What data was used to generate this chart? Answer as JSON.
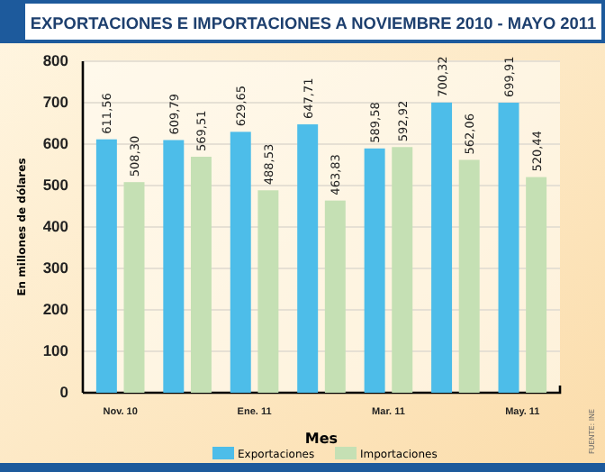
{
  "chart_data": {
    "type": "bar",
    "title": "EXPORTACIONES E IMPORTACIONES A NOVIEMBRE 2010 - MAYO 2011",
    "xlabel": "Mes",
    "ylabel": "En millones de dólares",
    "categories": [
      "Nov. 10",
      null,
      "Ene. 11",
      null,
      "Mar. 11",
      null,
      "May. 11"
    ],
    "series": [
      {
        "name": "Exportaciones",
        "color": "#4dbde9",
        "values": [
          611.56,
          609.79,
          629.65,
          647.71,
          589.58,
          700.32,
          699.91
        ],
        "value_labels": [
          "611,56",
          "609,79",
          "629,65",
          "647,71",
          "589,58",
          "700,32",
          "699,91"
        ]
      },
      {
        "name": "Importaciones",
        "color": "#c5e0b4",
        "values": [
          508.3,
          569.51,
          488.53,
          463.83,
          592.92,
          562.06,
          520.44
        ],
        "value_labels": [
          "508,30",
          "569,51",
          "488,53",
          "463,83",
          "592,92",
          "562,06",
          "520,44"
        ]
      }
    ],
    "ylim": [
      0,
      800
    ],
    "yticks": [
      0,
      100,
      200,
      300,
      400,
      500,
      600,
      700,
      800
    ],
    "grid": "y",
    "legend": "bottom",
    "annotations": [
      "FUENTE: INE"
    ]
  }
}
